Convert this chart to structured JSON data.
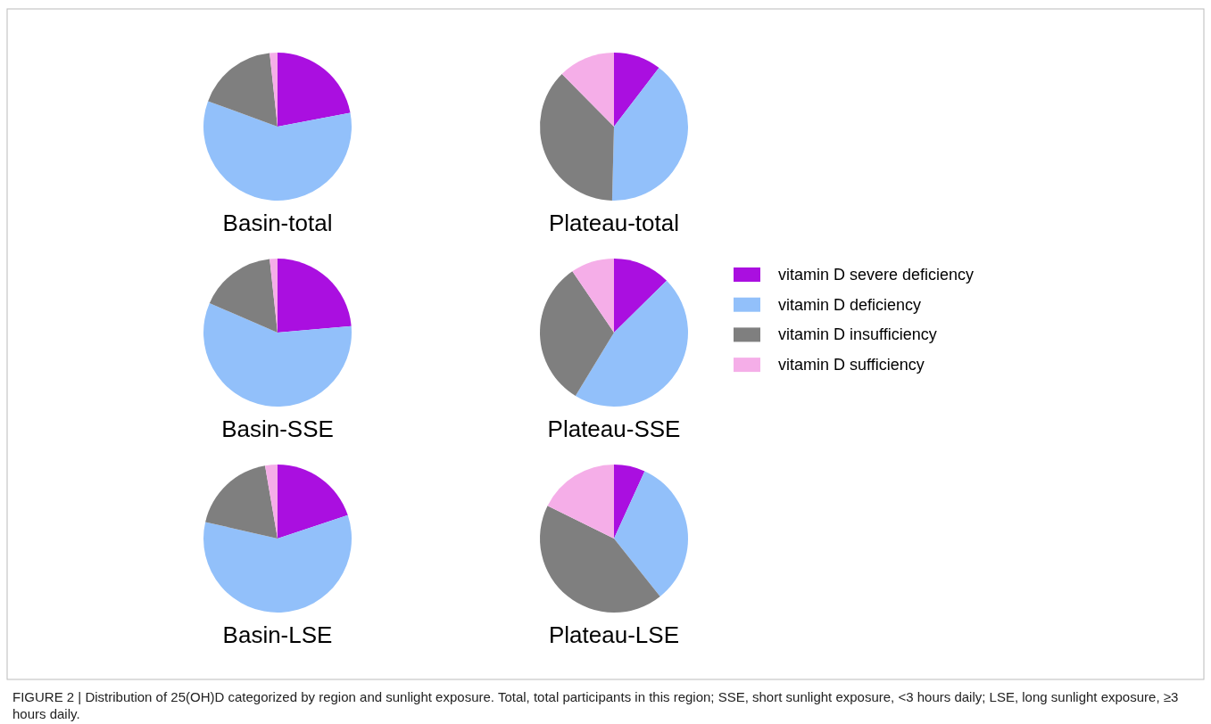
{
  "chart_data": [
    {
      "type": "pie",
      "title": "Basin-total",
      "categories": [
        null,
        null,
        null,
        null
      ],
      "values": [
        22,
        58.6,
        17.7,
        1.7
      ],
      "colors": [
        "#aa0fe0",
        "#92c0fa",
        "#7f7f7f",
        "#f5aee8"
      ],
      "legend": false
    },
    {
      "type": "pie",
      "title": "Plateau-total",
      "categories": [
        null,
        null,
        null,
        null
      ],
      "values": [
        10.4,
        40,
        37.2,
        12.4
      ],
      "colors": [
        "#aa0fe0",
        "#92c0fa",
        "#7f7f7f",
        "#f5aee8"
      ],
      "legend": false
    },
    {
      "type": "pie",
      "title": "Basin-SSE",
      "categories": [
        null,
        null,
        null,
        null
      ],
      "values": [
        23.6,
        57.9,
        16.8,
        1.7
      ],
      "colors": [
        "#aa0fe0",
        "#92c0fa",
        "#7f7f7f",
        "#f5aee8"
      ],
      "legend": false
    },
    {
      "type": "pie",
      "title": "Plateau-SSE",
      "categories": [
        "vitamin D severe deficiency",
        "vitamin D deficiency",
        "vitamin D insufficiency",
        "vitamin D sufficiency"
      ],
      "values": [
        12.6,
        46.1,
        31.8,
        9.5
      ],
      "colors": [
        "#aa0fe0",
        "#92c0fa",
        "#7f7f7f",
        "#f5aee8"
      ],
      "legend": "right"
    },
    {
      "type": "pie",
      "title": "Basin-LSE",
      "categories": [
        null,
        null,
        null,
        null
      ],
      "values": [
        19.9,
        58.7,
        18.7,
        2.7
      ],
      "colors": [
        "#aa0fe0",
        "#92c0fa",
        "#7f7f7f",
        "#f5aee8"
      ],
      "legend": false
    },
    {
      "type": "pie",
      "title": "Plateau-LSE",
      "categories": [
        null,
        null,
        null,
        null
      ],
      "values": [
        6.8,
        32.5,
        43,
        17.7
      ],
      "colors": [
        "#aa0fe0",
        "#92c0fa",
        "#7f7f7f",
        "#f5aee8"
      ],
      "legend": false,
      "annotations": [
        "FIGURE 2 | Distribution of 25(OH)D categorized by region and sunlight exposure. Total, total participants in this region; SSE, short sunlight exposure, <3 hours daily; LSE, long sunlight exposure, ≥3 hours daily."
      ]
    }
  ]
}
